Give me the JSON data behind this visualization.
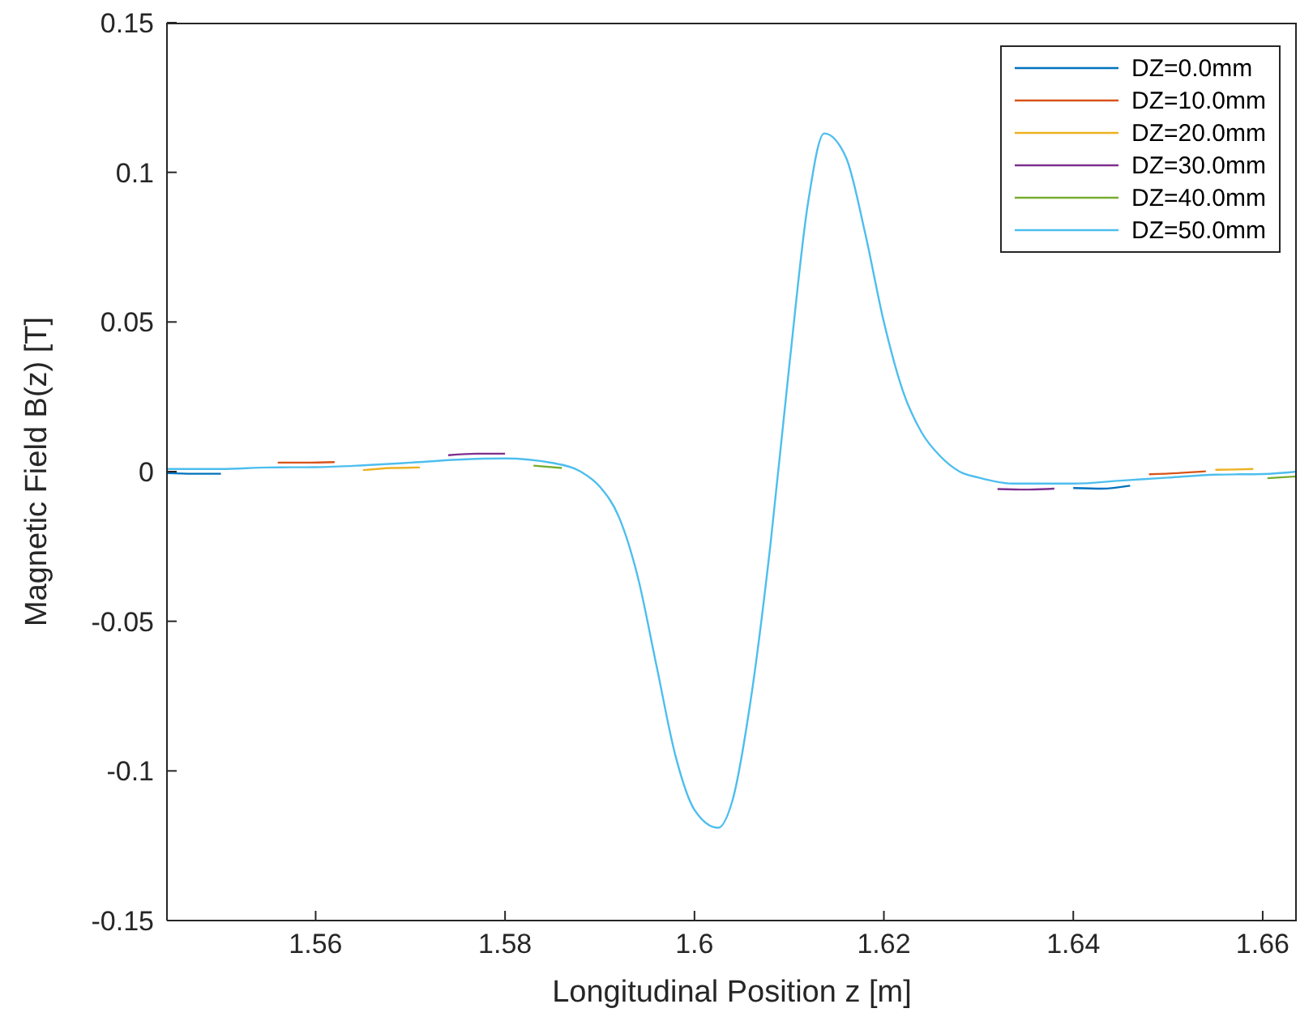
{
  "chart_data": {
    "type": "line",
    "xlabel": "Longitudinal Position z [m]",
    "ylabel": "Magnetic Field B(z) [T]",
    "x": [
      1.5443,
      1.55,
      1.555,
      1.56,
      1.565,
      1.57,
      1.575,
      1.58,
      1.585,
      1.588,
      1.59,
      1.592,
      1.594,
      1.596,
      1.598,
      1.6,
      1.6025,
      1.604,
      1.606,
      1.608,
      1.61,
      1.612,
      1.6137,
      1.616,
      1.618,
      1.62,
      1.622,
      1.624,
      1.626,
      1.628,
      1.63,
      1.6335,
      1.64,
      1.645,
      1.65,
      1.655,
      1.66,
      1.6636
    ],
    "xlim": [
      1.5443,
      1.6636
    ],
    "xticks": [
      1.56,
      1.58,
      1.6,
      1.62,
      1.64,
      1.66
    ],
    "ylim": [
      -0.15,
      0.15
    ],
    "yticks": [
      -0.15,
      -0.1,
      -0.05,
      0,
      0.05,
      0.1,
      0.15
    ],
    "grid": false,
    "legend": "top right",
    "line_style": "solid",
    "marker": "none",
    "series": [
      {
        "name": "DZ=0.0mm",
        "color": "#0072bd",
        "x": [
          1.5443,
          1.547,
          1.55,
          1.6,
          1.64,
          1.643,
          1.646
        ],
        "values": [
          -0.0005,
          -0.0007,
          -0.0007,
          null,
          -0.0055,
          -0.0057,
          -0.0047
        ]
      },
      {
        "name": "DZ=10.0mm",
        "color": "#d95319",
        "x": [
          1.556,
          1.559,
          1.562,
          1.6,
          1.648,
          1.651,
          1.654
        ],
        "values": [
          0.003,
          0.003,
          0.0032,
          null,
          -0.0009,
          -0.0005,
          0.0001
        ]
      },
      {
        "name": "DZ=20.0mm",
        "color": "#edb120",
        "x": [
          1.565,
          1.568,
          1.571,
          1.6,
          1.655,
          1.657,
          1.659
        ],
        "values": [
          0.0005,
          0.0012,
          0.0014,
          null,
          0.0006,
          0.0007,
          0.0009
        ]
      },
      {
        "name": "DZ=30.0mm",
        "color": "#7e2f8e",
        "x": [
          1.574,
          1.577,
          1.58,
          1.6,
          1.632,
          1.635,
          1.638
        ],
        "values": [
          0.0055,
          0.006,
          0.006,
          null,
          -0.0058,
          -0.006,
          -0.0057
        ]
      },
      {
        "name": "DZ=40.0mm",
        "color": "#77ac30",
        "x": [
          1.583,
          1.586,
          1.6,
          1.6605,
          1.6636
        ],
        "values": [
          0.002,
          0.0012,
          null,
          -0.0022,
          -0.0016
        ]
      },
      {
        "name": "DZ=50.0mm",
        "color": "#4dbeee",
        "values": [
          0.0009,
          0.0009,
          0.0014,
          0.0015,
          0.0021,
          0.003,
          0.004,
          0.0044,
          0.0029,
          0.0,
          -0.005,
          -0.015,
          -0.035,
          -0.065,
          -0.095,
          -0.113,
          -0.119,
          -0.11,
          -0.075,
          -0.025,
          0.035,
          0.09,
          0.113,
          0.105,
          0.08,
          0.05,
          0.027,
          0.013,
          0.005,
          0.0,
          -0.002,
          -0.004,
          -0.004,
          -0.003,
          -0.002,
          -0.001,
          -0.0008,
          0.0
        ]
      }
    ]
  }
}
